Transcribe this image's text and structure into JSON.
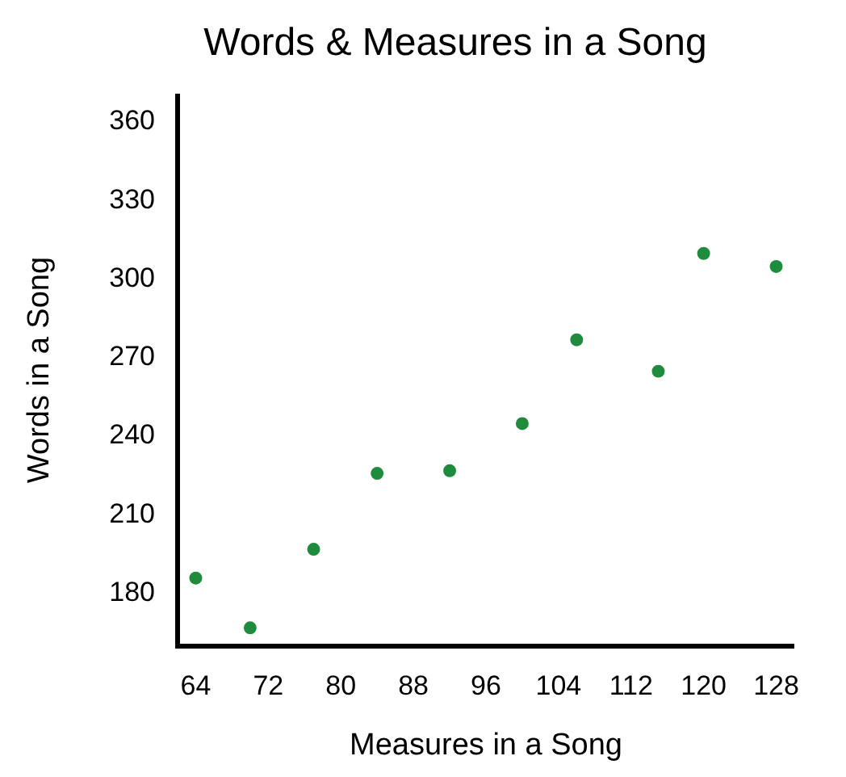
{
  "chart_data": {
    "type": "scatter",
    "title": "Words & Measures in a Song",
    "xlabel": "Measures in a Song",
    "ylabel": "Words in a Song",
    "x": [
      64,
      70,
      77,
      84,
      92,
      100,
      106,
      115,
      120,
      128
    ],
    "values": [
      185,
      166,
      196,
      225,
      226,
      244,
      276,
      264,
      309,
      304
    ],
    "color": "#1e8c3c",
    "marker": "circle",
    "grid": false,
    "xlim": [
      62,
      130
    ],
    "xticks": [
      64,
      72,
      80,
      88,
      96,
      104,
      112,
      120,
      128
    ],
    "ylim": [
      159,
      370
    ],
    "yticks": [
      180,
      210,
      240,
      270,
      300,
      330,
      360
    ]
  }
}
